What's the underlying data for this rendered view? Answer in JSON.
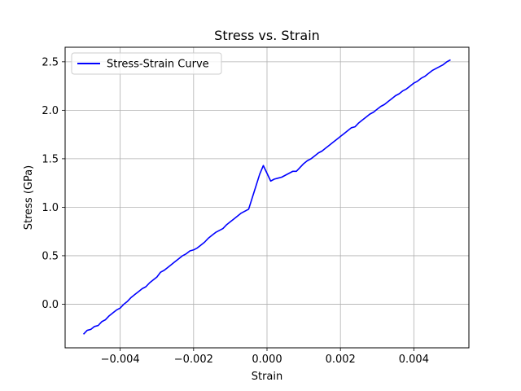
{
  "chart_data": {
    "type": "line",
    "title": "Stress vs. Strain",
    "xlabel": "Strain",
    "ylabel": "Stress (GPa)",
    "xlim": [
      -0.0055,
      0.0055
    ],
    "ylim": [
      -0.45,
      2.65
    ],
    "xticks": [
      -0.004,
      -0.002,
      0.0,
      0.002,
      0.004
    ],
    "xtick_labels": [
      "−0.004",
      "−0.002",
      "0.000",
      "0.002",
      "0.004"
    ],
    "yticks": [
      0.0,
      0.5,
      1.0,
      1.5,
      2.0,
      2.5
    ],
    "ytick_labels": [
      "0.0",
      "0.5",
      "1.0",
      "1.5",
      "2.0",
      "2.5"
    ],
    "grid": true,
    "legend_position": "upper-left",
    "series": [
      {
        "name": "Stress-Strain Curve",
        "color": "#0000ff",
        "x": [
          -0.005,
          -0.0049,
          -0.0048,
          -0.0047,
          -0.0046,
          -0.0045,
          -0.0044,
          -0.0043,
          -0.0042,
          -0.0041,
          -0.004,
          -0.0039,
          -0.0038,
          -0.0037,
          -0.0036,
          -0.0035,
          -0.0034,
          -0.0033,
          -0.0032,
          -0.0031,
          -0.003,
          -0.0029,
          -0.0028,
          -0.0027,
          -0.0026,
          -0.0025,
          -0.0024,
          -0.0023,
          -0.0022,
          -0.0021,
          -0.002,
          -0.0019,
          -0.0018,
          -0.0017,
          -0.0016,
          -0.0015,
          -0.0014,
          -0.0013,
          -0.0012,
          -0.0011,
          -0.001,
          -0.0009,
          -0.0008,
          -0.0007,
          -0.0006,
          -0.0005,
          -0.0004,
          -0.0003,
          -0.0002,
          -0.0001,
          0.0001,
          0.0002,
          0.0003,
          0.0004,
          0.0005,
          0.0006,
          0.0007,
          0.0008,
          0.0009,
          0.001,
          0.0011,
          0.0012,
          0.0013,
          0.0014,
          0.0015,
          0.0016,
          0.0017,
          0.0018,
          0.0019,
          0.002,
          0.0021,
          0.0022,
          0.0023,
          0.0024,
          0.0025,
          0.0026,
          0.0027,
          0.0028,
          0.0029,
          0.003,
          0.0031,
          0.0032,
          0.0033,
          0.0034,
          0.0035,
          0.0036,
          0.0037,
          0.0038,
          0.0039,
          0.004,
          0.0041,
          0.0042,
          0.0043,
          0.0044,
          0.0045,
          0.0046,
          0.0047,
          0.0048,
          0.0049,
          0.005
        ],
        "y": [
          -0.31,
          -0.27,
          -0.26,
          -0.23,
          -0.22,
          -0.18,
          -0.16,
          -0.12,
          -0.09,
          -0.06,
          -0.04,
          0.0,
          0.03,
          0.07,
          0.1,
          0.13,
          0.16,
          0.18,
          0.22,
          0.25,
          0.28,
          0.33,
          0.35,
          0.38,
          0.41,
          0.44,
          0.47,
          0.5,
          0.52,
          0.55,
          0.56,
          0.58,
          0.61,
          0.64,
          0.68,
          0.71,
          0.74,
          0.76,
          0.78,
          0.82,
          0.85,
          0.88,
          0.91,
          0.94,
          0.96,
          0.98,
          1.1,
          1.22,
          1.34,
          1.43,
          1.27,
          1.29,
          1.3,
          1.31,
          1.33,
          1.35,
          1.37,
          1.37,
          1.41,
          1.45,
          1.48,
          1.5,
          1.53,
          1.56,
          1.58,
          1.61,
          1.64,
          1.67,
          1.7,
          1.73,
          1.76,
          1.79,
          1.82,
          1.83,
          1.87,
          1.9,
          1.93,
          1.96,
          1.98,
          2.01,
          2.04,
          2.06,
          2.09,
          2.12,
          2.15,
          2.17,
          2.2,
          2.22,
          2.25,
          2.28,
          2.3,
          2.33,
          2.35,
          2.38,
          2.41,
          2.43,
          2.45,
          2.47,
          2.5,
          2.52
        ]
      }
    ]
  }
}
